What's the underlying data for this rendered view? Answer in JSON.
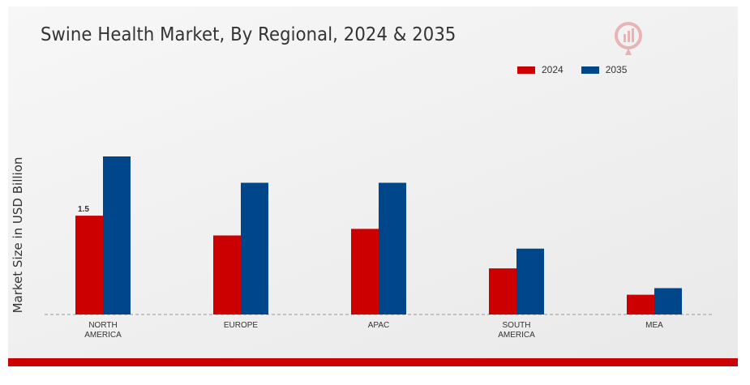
{
  "chart_data": {
    "type": "bar",
    "title": "Swine Health Market, By Regional, 2024 & 2035",
    "xlabel": "",
    "ylabel": "Market Size in USD Billion",
    "categories": [
      "NORTH AMERICA",
      "EUROPE",
      "APAC",
      "SOUTH AMERICA",
      "MEA"
    ],
    "category_lines": [
      [
        "NORTH",
        "AMERICA"
      ],
      [
        "EUROPE"
      ],
      [
        "APAC"
      ],
      [
        "SOUTH",
        "AMERICA"
      ],
      [
        "MEA"
      ]
    ],
    "series": [
      {
        "name": "2024",
        "color": "#cc0000",
        "values": [
          1.5,
          1.2,
          1.3,
          0.7,
          0.3
        ]
      },
      {
        "name": "2035",
        "color": "#00468b",
        "values": [
          2.4,
          2.0,
          2.0,
          1.0,
          0.4
        ]
      }
    ],
    "data_labels": [
      {
        "series": 0,
        "index": 0,
        "text": "1.5"
      }
    ],
    "ylim": [
      0,
      3.2
    ],
    "grid": false,
    "legend_position": "top-right"
  },
  "colors": {
    "accent_bar": "#cc0000",
    "baseline": "#999999"
  },
  "icons": {
    "logo": "watermark-logo-icon"
  }
}
